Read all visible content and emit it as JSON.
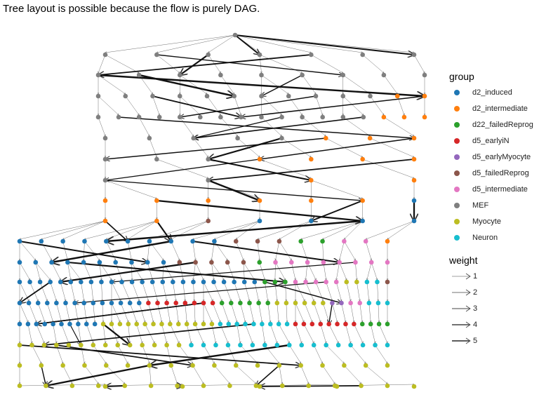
{
  "title": "Tree layout is possible because the flow is purely DAG.",
  "legend": {
    "group_title": "group",
    "groups": [
      {
        "name": "d2_induced",
        "color": "#1f77b4"
      },
      {
        "name": "d2_intermediate",
        "color": "#ff7f0e"
      },
      {
        "name": "d22_failedReprog",
        "color": "#2ca02c"
      },
      {
        "name": "d5_earlyiN",
        "color": "#d62728"
      },
      {
        "name": "d5_earlyMyocyte",
        "color": "#9467bd"
      },
      {
        "name": "d5_failedReprog",
        "color": "#8c564b"
      },
      {
        "name": "d5_intermediate",
        "color": "#e377c2"
      },
      {
        "name": "MEF",
        "color": "#7f7f7f"
      },
      {
        "name": "Myocyte",
        "color": "#bcbd22"
      },
      {
        "name": "Neuron",
        "color": "#17becf"
      }
    ],
    "weight_title": "weight",
    "weights": [
      "1",
      "2",
      "3",
      "4",
      "5"
    ]
  },
  "diagram": {
    "type": "directed-acyclic-graph",
    "layout": "tree",
    "edge_color": "#333333",
    "levels": [
      [
        {
          "g": "MEF",
          "n": 1
        }
      ],
      [
        {
          "g": "MEF",
          "n": 7
        }
      ],
      [
        {
          "g": "MEF",
          "n": 9
        }
      ],
      [
        {
          "g": "MEF",
          "n": 11
        },
        {
          "g": "d2_intermediate",
          "n": 2
        }
      ],
      [
        {
          "g": "MEF",
          "n": 14
        },
        {
          "g": "d2_intermediate",
          "n": 3
        }
      ],
      [
        {
          "g": "MEF",
          "n": 5
        },
        {
          "g": "d2_intermediate",
          "n": 3
        }
      ],
      [
        {
          "g": "MEF",
          "n": 3
        },
        {
          "g": "d2_intermediate",
          "n": 4
        }
      ],
      [
        {
          "g": "MEF",
          "n": 2
        },
        {
          "g": "d2_intermediate",
          "n": 2
        }
      ],
      [
        {
          "g": "d2_intermediate",
          "n": 6
        },
        {
          "g": "d2_induced",
          "n": 1
        }
      ],
      [
        {
          "g": "d2_intermediate",
          "n": 2
        },
        {
          "g": "d5_failedReprog",
          "n": 1
        },
        {
          "g": "d2_induced",
          "n": 4
        }
      ],
      [
        {
          "g": "d2_induced",
          "n": 10
        },
        {
          "g": "d5_failedReprog",
          "n": 3
        },
        {
          "g": "d22_failedReprog",
          "n": 2
        },
        {
          "g": "d5_intermediate",
          "n": 2
        },
        {
          "g": "d2_intermediate",
          "n": 1
        }
      ],
      [
        {
          "g": "d2_induced",
          "n": 10
        },
        {
          "g": "d5_failedReprog",
          "n": 5
        },
        {
          "g": "d22_failedReprog",
          "n": 1
        },
        {
          "g": "d5_intermediate",
          "n": 8
        }
      ],
      [
        {
          "g": "d2_induced",
          "n": 24
        },
        {
          "g": "d22_failedReprog",
          "n": 3
        },
        {
          "g": "d5_intermediate",
          "n": 5
        },
        {
          "g": "Myocyte",
          "n": 2
        },
        {
          "g": "Neuron",
          "n": 2
        },
        {
          "g": "d5_failedReprog",
          "n": 1
        }
      ],
      [
        {
          "g": "d2_induced",
          "n": 14
        },
        {
          "g": "d5_earlyiN",
          "n": 8
        },
        {
          "g": "d22_failedReprog",
          "n": 6
        },
        {
          "g": "Myocyte",
          "n": 6
        },
        {
          "g": "d5_earlyMyocyte",
          "n": 2
        },
        {
          "g": "d5_intermediate",
          "n": 2
        },
        {
          "g": "Neuron",
          "n": 3
        }
      ],
      [
        {
          "g": "d2_induced",
          "n": 10
        },
        {
          "g": "Myocyte",
          "n": 14
        },
        {
          "g": "Neuron",
          "n": 9
        },
        {
          "g": "d5_earlyiN",
          "n": 8
        },
        {
          "g": "d22_failedReprog",
          "n": 4
        }
      ],
      [
        {
          "g": "Myocyte",
          "n": 14
        },
        {
          "g": "Neuron",
          "n": 17
        }
      ],
      [
        {
          "g": "Myocyte",
          "n": 18
        }
      ],
      [
        {
          "g": "Myocyte",
          "n": 15
        }
      ],
      [
        {
          "g": "Myocyte",
          "n": 5
        }
      ]
    ]
  }
}
